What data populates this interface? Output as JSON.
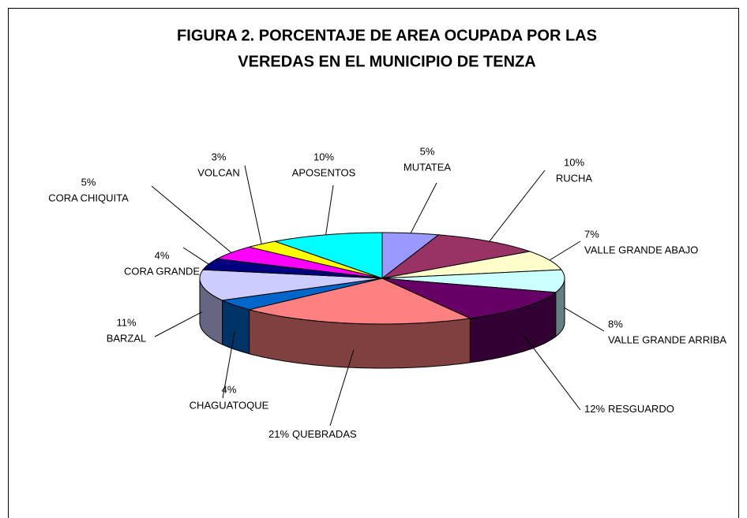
{
  "chart_data": {
    "type": "pie",
    "title": [
      "FIGURA 2. PORCENTAJE DE AREA OCUPADA POR LAS",
      "VEREDAS EN EL MUNICIPIO  DE  TENZA"
    ],
    "categories": [
      "MUTATEA",
      "RUCHA",
      "VALLE GRANDE ABAJO",
      "VALLE GRANDE ARRIBA",
      "RESGUARDO",
      "QUEBRADAS",
      "CHAGUATOQUE",
      "BARZAL",
      "CORA GRANDE",
      "CORA CHIQUITA",
      "VOLCAN",
      "APOSENTOS"
    ],
    "values": [
      5,
      10,
      7,
      8,
      12,
      21,
      4,
      11,
      4,
      5,
      3,
      10
    ],
    "value_labels": [
      "5%",
      "10%",
      "7%",
      "8%",
      "12%",
      "21%",
      "4%",
      "11%",
      "4%",
      "5%",
      "3%",
      "10%"
    ],
    "colors": [
      "#9999ff",
      "#993366",
      "#ffffcc",
      "#ccffff",
      "#660066",
      "#ff8080",
      "#0066cc",
      "#ccccff",
      "#000080",
      "#ff00ff",
      "#ffff00",
      "#00ffff"
    ]
  }
}
